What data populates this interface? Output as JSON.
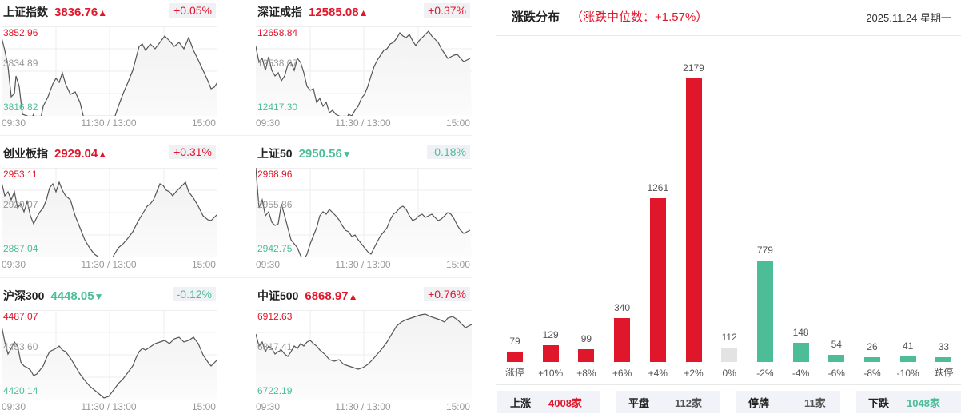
{
  "indices": [
    {
      "name": "上证指数",
      "value": "3836.76",
      "arrow": "▲",
      "pct": "+0.05%",
      "dir": "up",
      "high": "3852.96",
      "mid": "3834.89",
      "low": "3816.82"
    },
    {
      "name": "深证成指",
      "value": "12585.08",
      "arrow": "▲",
      "pct": "+0.37%",
      "dir": "up",
      "high": "12658.84",
      "mid": "12538.07",
      "low": "12417.30"
    },
    {
      "name": "创业板指",
      "value": "2929.04",
      "arrow": "▲",
      "pct": "+0.31%",
      "dir": "up",
      "high": "2953.11",
      "mid": "2920.07",
      "low": "2887.04"
    },
    {
      "name": "上证50",
      "value": "2950.56",
      "arrow": "▼",
      "pct": "-0.18%",
      "dir": "down",
      "high": "2968.96",
      "mid": "2955.86",
      "low": "2942.75"
    },
    {
      "name": "沪深300",
      "value": "4448.05",
      "arrow": "▼",
      "pct": "-0.12%",
      "dir": "down",
      "high": "4487.07",
      "mid": "4453.60",
      "low": "4420.14"
    },
    {
      "name": "中证500",
      "value": "6868.97",
      "arrow": "▲",
      "pct": "+0.76%",
      "dir": "up",
      "high": "6912.63",
      "mid": "6817.41",
      "low": "6722.19"
    }
  ],
  "time_axis": {
    "start": "09:30",
    "mid": "11:30 / 13:00",
    "end": "15:00"
  },
  "distribution": {
    "title": "涨跌分布",
    "subtitle": "（涨跌中位数：+1.57%）",
    "date": "2025.11.24 星期一",
    "colors": {
      "up": "#e0162b",
      "flat": "#e3e3e3",
      "down": "#4dbd98"
    }
  },
  "summary": {
    "up_label": "上涨",
    "up_value": "4008家",
    "flat_label": "平盘",
    "flat_value": "112家",
    "halt_label": "停牌",
    "halt_value": "11家",
    "down_label": "下跌",
    "down_value": "1048家"
  },
  "chart_data": {
    "type": "bar",
    "title": "涨跌分布（涨跌中位数：+1.57%）",
    "categories": [
      "涨停",
      "+10%",
      "+8%",
      "+6%",
      "+4%",
      "+2%",
      "0%",
      "-2%",
      "-4%",
      "-6%",
      "-8%",
      "-10%",
      "跌停"
    ],
    "values": [
      79,
      129,
      99,
      340,
      1261,
      2179,
      112,
      779,
      148,
      54,
      26,
      41,
      33
    ],
    "colors": [
      "up",
      "up",
      "up",
      "up",
      "up",
      "up",
      "flat",
      "down",
      "down",
      "down",
      "down",
      "down",
      "down"
    ],
    "xlabel": "",
    "ylabel": "",
    "grid": false
  }
}
